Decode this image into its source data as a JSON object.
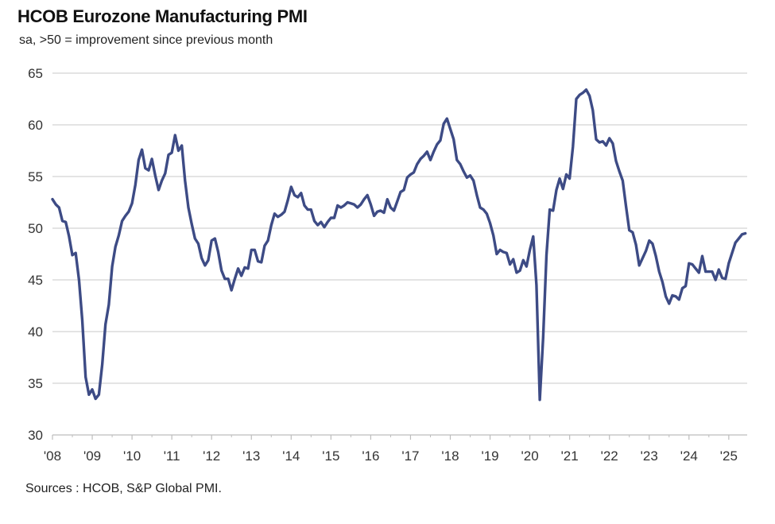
{
  "chart_data": {
    "type": "line",
    "title": "HCOB Eurozone Manufacturing PMI",
    "subtitle": "sa, >50 = improvement  since previous month",
    "source": "Sources : HCOB, S&P Global PMI.",
    "xlabel": "",
    "ylabel": "",
    "ylim": [
      30,
      65
    ],
    "yticks": [
      "30",
      "35",
      "40",
      "45",
      "50",
      "55",
      "60",
      "65"
    ],
    "xticks": [
      "'08",
      "'09",
      "'10",
      "'11",
      "'12",
      "'13",
      "'14",
      "'15",
      "'16",
      "'17",
      "'18",
      "'19",
      "'20",
      "'21",
      "'22",
      "'23",
      "'24",
      "'25"
    ],
    "grid": true,
    "legend": "none",
    "line_color": "#3d4b85",
    "x_start": "2008-01",
    "frequency": "monthly",
    "series": [
      {
        "values": [
          52.8,
          52.3,
          52.0,
          50.7,
          50.6,
          49.2,
          47.4,
          47.6,
          45.0,
          41.1,
          35.6,
          33.9,
          34.4,
          33.5,
          33.9,
          36.8,
          40.7,
          42.6,
          46.3,
          48.2,
          49.3,
          50.7,
          51.2,
          51.6,
          52.4,
          54.2,
          56.6,
          57.6,
          55.8,
          55.6,
          56.7,
          55.1,
          53.7,
          54.6,
          55.3,
          57.1,
          57.3,
          59.0,
          57.5,
          58.0,
          54.6,
          52.0,
          50.4,
          49.0,
          48.5,
          47.1,
          46.4,
          46.9,
          48.8,
          49.0,
          47.7,
          45.9,
          45.1,
          45.1,
          44.0,
          45.1,
          46.1,
          45.4,
          46.2,
          46.1,
          47.9,
          47.9,
          46.8,
          46.7,
          48.3,
          48.8,
          50.3,
          51.4,
          51.1,
          51.3,
          51.6,
          52.7,
          54.0,
          53.2,
          53.0,
          53.4,
          52.2,
          51.8,
          51.8,
          50.7,
          50.3,
          50.6,
          50.1,
          50.6,
          51.0,
          51.0,
          52.2,
          52.0,
          52.2,
          52.5,
          52.4,
          52.3,
          52.0,
          52.3,
          52.8,
          53.2,
          52.3,
          51.2,
          51.6,
          51.7,
          51.5,
          52.8,
          52.0,
          51.7,
          52.6,
          53.5,
          53.7,
          54.9,
          55.2,
          55.4,
          56.2,
          56.7,
          57.0,
          57.4,
          56.6,
          57.4,
          58.1,
          58.5,
          60.1,
          60.6,
          59.6,
          58.6,
          56.6,
          56.2,
          55.5,
          54.9,
          55.1,
          54.6,
          53.2,
          52.0,
          51.8,
          51.4,
          50.5,
          49.3,
          47.5,
          47.9,
          47.7,
          47.6,
          46.5,
          47.0,
          45.7,
          45.9,
          46.9,
          46.3,
          47.9,
          49.2,
          44.5,
          33.4,
          39.4,
          47.4,
          51.8,
          51.7,
          53.7,
          54.8,
          53.8,
          55.2,
          54.8,
          57.9,
          62.5,
          62.9,
          63.1,
          63.4,
          62.8,
          61.4,
          58.6,
          58.3,
          58.4,
          58.0,
          58.7,
          58.2,
          56.5,
          55.5,
          54.6,
          52.1,
          49.8,
          49.6,
          48.4,
          46.4,
          47.1,
          47.8,
          48.8,
          48.5,
          47.3,
          45.8,
          44.8,
          43.4,
          42.7,
          43.5,
          43.4,
          43.1,
          44.2,
          44.4,
          46.6,
          46.5,
          46.1,
          45.7,
          47.3,
          45.8,
          45.8,
          45.8,
          45.0,
          46.0,
          45.2,
          45.1,
          46.6,
          47.6,
          48.6,
          49.0,
          49.4,
          49.5
        ]
      }
    ]
  }
}
